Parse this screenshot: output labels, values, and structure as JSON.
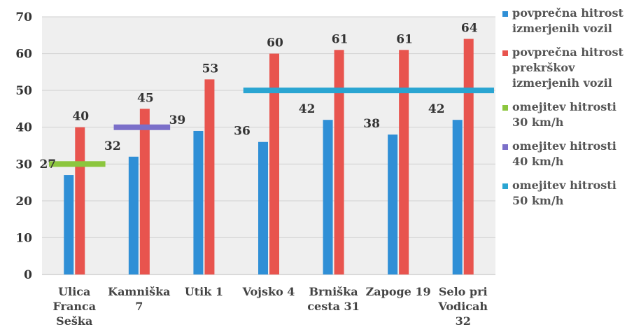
{
  "chart_data": {
    "type": "bar",
    "categories": [
      [
        "Ulica",
        "Franca",
        "Seška"
      ],
      [
        "Kamniška",
        "7"
      ],
      [
        "Utik 1"
      ],
      [
        "Vojsko 4"
      ],
      [
        "Brniška",
        "cesta 31"
      ],
      [
        "Zapoge 19"
      ],
      [
        "Selo pri",
        "Vodicah",
        "32"
      ]
    ],
    "series": [
      {
        "name": "povprečna hitrost izmerjenih vozil",
        "color": "#2f8fd6",
        "values": [
          27,
          32,
          39,
          36,
          42,
          38,
          42
        ]
      },
      {
        "name": "povprečna hitrost prekrškov izmerjenih vozil",
        "color": "#e8544e",
        "values": [
          40,
          45,
          53,
          60,
          61,
          61,
          64
        ]
      }
    ],
    "data_labels": {
      "series0": [
        "27",
        "32",
        "39",
        "36",
        "42",
        "38",
        "42"
      ],
      "series1": [
        "40",
        "45",
        "53",
        "60",
        "61",
        "61",
        "64"
      ]
    },
    "limits": [
      {
        "name": "omejitev hitrosti 30 km/h",
        "value": 30,
        "color": "#8cc63e",
        "from_category": 0,
        "to_category": 0
      },
      {
        "name": "omejitev hitrosti 40 km/h",
        "value": 40,
        "color": "#7b6fc9",
        "from_category": 1,
        "to_category": 1
      },
      {
        "name": "omejitev hitrosti 50 km/h",
        "value": 50,
        "color": "#2aa5d2",
        "from_category": 3,
        "to_category": 6
      }
    ],
    "y_ticks": [
      "0",
      "10",
      "20",
      "30",
      "40",
      "50",
      "60",
      "70"
    ],
    "ylim": [
      0,
      70
    ],
    "grid": true,
    "legend_position": "right"
  }
}
